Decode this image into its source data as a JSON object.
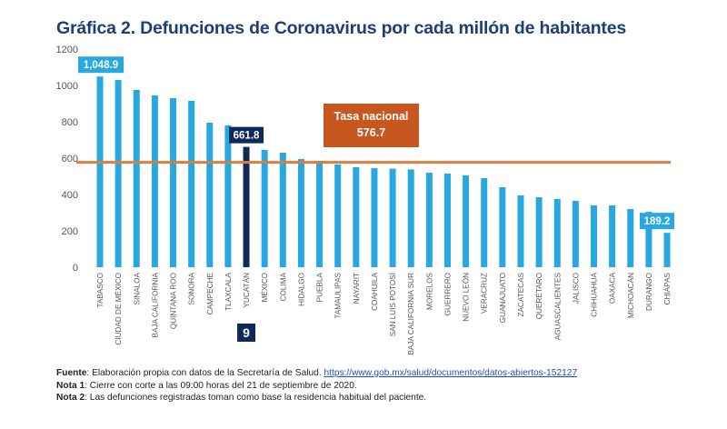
{
  "title": "Gráfica 2. Defunciones de Coronavirus por cada millón de habitantes",
  "chart_data": {
    "type": "bar",
    "title": "Gráfica 2. Defunciones de Coronavirus por cada millón de habitantes",
    "xlabel": "",
    "ylabel": "",
    "ylim": [
      0,
      1200
    ],
    "yticks": [
      0,
      200,
      400,
      600,
      800,
      1000,
      1200
    ],
    "grid": false,
    "categories": [
      "TABASCO",
      "CIUDAD DE MÉXICO",
      "SINALOA",
      "BAJA CALIFORNIA",
      "QUINTANA ROO",
      "SONORA",
      "CAMPECHE",
      "TLAXCALA",
      "YUCATÁN",
      "MÉXICO",
      "COLIMA",
      "HIDALGO",
      "PUEBLA",
      "TAMAULIPAS",
      "NAYARIT",
      "COAHUILA",
      "SAN LUIS POTOSÍ",
      "BAJA CALIFORNIA SUR",
      "MORELOS",
      "GUERRERO",
      "NUEVO LEÓN",
      "VERACRUZ",
      "GUANAJUATO",
      "ZACATECAS",
      "QUERÉTARO",
      "AGUASCALIENTES",
      "JALISCO",
      "CHIHUAHUA",
      "OAXACA",
      "MICHOACÁN",
      "DURANGO",
      "CHIAPAS"
    ],
    "values": [
      1048.9,
      1030,
      975,
      945,
      930,
      915,
      795,
      780,
      661.8,
      645,
      630,
      595,
      585,
      565,
      550,
      545,
      542,
      538,
      520,
      515,
      505,
      490,
      440,
      395,
      385,
      375,
      365,
      340,
      340,
      320,
      305,
      189.2
    ],
    "highlight_index": 8,
    "highlight_rank": "9",
    "reference_line": {
      "label_line1": "Tasa nacional",
      "label_line2": "576.7",
      "value": 576.7
    },
    "data_labels": [
      {
        "index": 0,
        "text": "1,048.9"
      },
      {
        "index": 8,
        "text": "661.8"
      },
      {
        "index": 31,
        "text": "189.2"
      }
    ],
    "colors": {
      "bar": "#27a8e0",
      "highlight": "#0f2a5a",
      "reference": "#e07b3a",
      "callout": "#c8561f",
      "axis_text": "#555555"
    }
  },
  "notes": {
    "fuente_label": "Fuente",
    "fuente_text": ": Elaboración propia con datos de la Secretaría de Salud. ",
    "fuente_link": "https://www.gob.mx/salud/documentos/datos-abiertos-152127",
    "nota1_label": "Nota 1",
    "nota1_text": ": Cierre con corte a las 09:00 horas del 21 de septiembre de 2020.",
    "nota2_label": "Nota 2",
    "nota2_text": ": Las defunciones registradas toman como base la residencia habitual del paciente."
  }
}
